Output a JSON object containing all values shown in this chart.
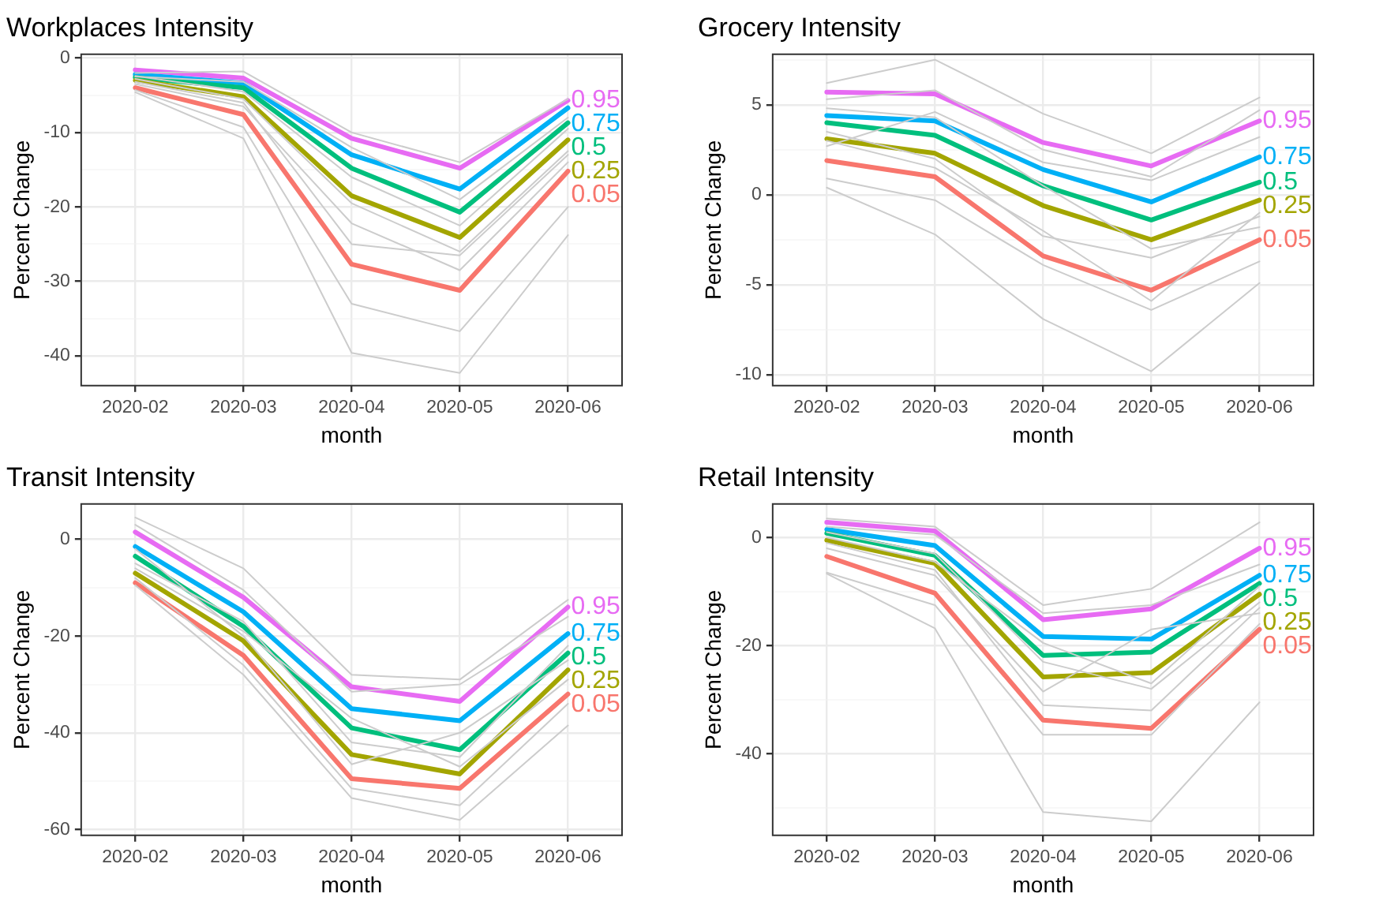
{
  "chart_data": [
    {
      "type": "line",
      "title": "Workplaces Intensity",
      "xlabel": "month",
      "ylabel": "Percent Change",
      "categories": [
        "2020-02",
        "2020-03",
        "2020-04",
        "2020-05",
        "2020-06"
      ],
      "ylim": [
        -44,
        0.5
      ],
      "yticks": [
        {
          "value": -40,
          "label": "-40"
        },
        {
          "value": -35,
          "label": null
        },
        {
          "value": -30,
          "label": "-30"
        },
        {
          "value": -25,
          "label": null
        },
        {
          "value": -20,
          "label": "-20"
        },
        {
          "value": -15,
          "label": null
        },
        {
          "value": -10,
          "label": "-10"
        },
        {
          "value": -5,
          "label": null
        },
        0
      ],
      "grid": true,
      "legend": false,
      "series": [
        {
          "color": "#cccccc",
          "values": [
            -4.6,
            -10.8,
            -39.6,
            -42.3,
            -23.8
          ]
        },
        {
          "color": "#cccccc",
          "values": [
            -4.3,
            -9.3,
            -33,
            -36.7,
            -20
          ]
        },
        {
          "color": "#cccccc",
          "values": [
            -3.5,
            -6.5,
            -22.2,
            -28.5,
            -14
          ]
        },
        {
          "color": "#cccccc",
          "values": [
            -3.2,
            -6,
            -25,
            -26.5,
            -13
          ]
        },
        {
          "color": "#cccccc",
          "values": [
            -2,
            -1.8,
            -10,
            -14,
            -5.5
          ]
        },
        {
          "color": "#cccccc",
          "values": [
            -2.4,
            -4.5,
            -16,
            -22.5,
            -9.5
          ]
        },
        {
          "color": "#cccccc",
          "values": [
            -2.8,
            -5.5,
            -19.5,
            -26,
            -12.5
          ]
        },
        {
          "color": "#cccccc",
          "values": [
            -2.5,
            -3.2,
            -12,
            -19,
            -8
          ]
        },
        {
          "name": "0.05",
          "color": "#f8766d",
          "values": [
            -4,
            -7.6,
            -27.7,
            -31.2,
            -15.2
          ]
        },
        {
          "name": "0.25",
          "color": "#a3a500",
          "values": [
            -3,
            -5.2,
            -18.5,
            -24.1,
            -11
          ]
        },
        {
          "name": "0.5",
          "color": "#00bf7d",
          "values": [
            -2.6,
            -4,
            -14.8,
            -20.7,
            -8.7
          ]
        },
        {
          "name": "0.75",
          "color": "#00b0f6",
          "values": [
            -2.2,
            -3.4,
            -13,
            -17.6,
            -6.7
          ]
        },
        {
          "name": "0.95",
          "color": "#e76bf3",
          "values": [
            -1.6,
            -2.7,
            -10.8,
            -14.8,
            -5.7
          ]
        }
      ]
    },
    {
      "type": "line",
      "title": "Grocery Intensity",
      "xlabel": "month",
      "ylabel": "Percent Change",
      "categories": [
        "2020-02",
        "2020-03",
        "2020-04",
        "2020-05",
        "2020-06"
      ],
      "ylim": [
        -10.6,
        7.8
      ],
      "yticks": [
        -10,
        {
          "value": -7.5,
          "label": null
        },
        -5,
        {
          "value": -2.5,
          "label": null
        },
        0,
        {
          "value": 2.5,
          "label": null
        },
        5,
        {
          "value": 7.5,
          "label": null
        }
      ],
      "grid": true,
      "legend": false,
      "series": [
        {
          "color": "#cccccc",
          "values": [
            0.4,
            -2.2,
            -6.9,
            -9.8,
            -4.9
          ]
        },
        {
          "color": "#cccccc",
          "values": [
            6.2,
            7.5,
            4.5,
            2.3,
            5.4
          ]
        },
        {
          "color": "#cccccc",
          "values": [
            0.9,
            -0.3,
            -3.9,
            -6.4,
            -3.7
          ]
        },
        {
          "color": "#cccccc",
          "values": [
            5.3,
            5.8,
            2.5,
            1,
            4.7
          ]
        },
        {
          "color": "#cccccc",
          "values": [
            3.5,
            2,
            -2.3,
            -3.5,
            -1.2
          ]
        },
        {
          "color": "#cccccc",
          "values": [
            2.7,
            4.6,
            1.8,
            0.8,
            3.2
          ]
        },
        {
          "color": "#cccccc",
          "values": [
            4.8,
            4.3,
            0.5,
            -3,
            -1.8
          ]
        },
        {
          "color": "#cccccc",
          "values": [
            3,
            1.5,
            -2,
            -5.9,
            -1
          ]
        },
        {
          "name": "0.05",
          "color": "#f8766d",
          "values": [
            1.9,
            1,
            -3.4,
            -5.3,
            -2.5
          ]
        },
        {
          "name": "0.25",
          "color": "#a3a500",
          "values": [
            3.1,
            2.3,
            -0.6,
            -2.5,
            -0.3
          ]
        },
        {
          "name": "0.5",
          "color": "#00bf7d",
          "values": [
            4,
            3.3,
            0.5,
            -1.4,
            0.7
          ]
        },
        {
          "name": "0.75",
          "color": "#00b0f6",
          "values": [
            4.4,
            4.1,
            1.4,
            -0.4,
            2.1
          ]
        },
        {
          "name": "0.95",
          "color": "#e76bf3",
          "values": [
            5.7,
            5.6,
            2.9,
            1.6,
            4.1
          ]
        }
      ]
    },
    {
      "type": "line",
      "title": "Transit Intensity",
      "xlabel": "month",
      "ylabel": "Percent Change",
      "categories": [
        "2020-02",
        "2020-03",
        "2020-04",
        "2020-05",
        "2020-06"
      ],
      "ylim": [
        -61.2,
        7.3
      ],
      "yticks": [
        -60,
        {
          "value": -50,
          "label": null
        },
        -40,
        {
          "value": -30,
          "label": null
        },
        -20,
        {
          "value": -10,
          "label": null
        },
        0
      ],
      "grid": true,
      "legend": false,
      "series": [
        {
          "color": "#cccccc",
          "values": [
            4.5,
            -6,
            -28,
            -29,
            -12.5
          ]
        },
        {
          "color": "#cccccc",
          "values": [
            -9.5,
            -28,
            -53.5,
            -58,
            -38.5
          ]
        },
        {
          "color": "#cccccc",
          "values": [
            -8,
            -26,
            -51.5,
            -55,
            -34
          ]
        },
        {
          "color": "#cccccc",
          "values": [
            3,
            -10.5,
            -31.5,
            -30,
            -16
          ]
        },
        {
          "color": "#cccccc",
          "values": [
            -5,
            -17,
            -42,
            -45,
            -22
          ]
        },
        {
          "color": "#cccccc",
          "values": [
            -2,
            -20,
            -46.5,
            -40,
            -25
          ]
        },
        {
          "color": "#cccccc",
          "values": [
            -6,
            -19,
            -37,
            -47,
            -29
          ]
        },
        {
          "name": "0.05",
          "color": "#f8766d",
          "values": [
            -9,
            -24,
            -49.5,
            -51.5,
            -32
          ]
        },
        {
          "name": "0.25",
          "color": "#a3a500",
          "values": [
            -7,
            -21,
            -44.5,
            -48.5,
            -27
          ]
        },
        {
          "name": "0.5",
          "color": "#00bf7d",
          "values": [
            -3.5,
            -18,
            -39,
            -43.5,
            -23.5
          ]
        },
        {
          "name": "0.75",
          "color": "#00b0f6",
          "values": [
            -1.5,
            -15,
            -35,
            -37.5,
            -19.5
          ]
        },
        {
          "name": "0.95",
          "color": "#e76bf3",
          "values": [
            1.5,
            -12,
            -30.5,
            -33.5,
            -14
          ]
        }
      ]
    },
    {
      "type": "line",
      "title": "Retail Intensity",
      "xlabel": "month",
      "ylabel": "Percent Change",
      "categories": [
        "2020-02",
        "2020-03",
        "2020-04",
        "2020-05",
        "2020-06"
      ],
      "ylim": [
        -55.1,
        6.2
      ],
      "yticks": [
        {
          "value": -50,
          "label": null
        },
        -40,
        {
          "value": -30,
          "label": null
        },
        -20,
        {
          "value": -10,
          "label": null
        },
        0
      ],
      "grid": true,
      "legend": false,
      "series": [
        {
          "color": "#cccccc",
          "values": [
            -6.7,
            -16.8,
            -50.8,
            -52.5,
            -30.5
          ]
        },
        {
          "color": "#cccccc",
          "values": [
            -6.5,
            -12.5,
            -36.5,
            -36.5,
            -16
          ]
        },
        {
          "color": "#cccccc",
          "values": [
            3.5,
            2,
            -12.5,
            -9.5,
            2.8
          ]
        },
        {
          "color": "#cccccc",
          "values": [
            2,
            0.5,
            -14,
            -12.5,
            -5
          ]
        },
        {
          "color": "#cccccc",
          "values": [
            -2,
            -7,
            -28.5,
            -17,
            -14
          ]
        },
        {
          "color": "#cccccc",
          "values": [
            -1,
            -6,
            -31,
            -32,
            -13
          ]
        },
        {
          "color": "#cccccc",
          "values": [
            1,
            -3,
            -23,
            -28,
            -12
          ]
        },
        {
          "color": "#cccccc",
          "values": [
            0,
            -4.5,
            -19.5,
            -27,
            -9
          ]
        },
        {
          "name": "0.05",
          "color": "#f8766d",
          "values": [
            -3.5,
            -10.3,
            -33.8,
            -35.3,
            -17
          ]
        },
        {
          "name": "0.25",
          "color": "#a3a500",
          "values": [
            -0.5,
            -4.8,
            -25.8,
            -25,
            -10.5
          ]
        },
        {
          "name": "0.5",
          "color": "#00bf7d",
          "values": [
            0.8,
            -3.3,
            -21.8,
            -21.2,
            -8.5
          ]
        },
        {
          "name": "0.75",
          "color": "#00b0f6",
          "values": [
            1.5,
            -1.5,
            -18.3,
            -18.8,
            -7
          ]
        },
        {
          "name": "0.95",
          "color": "#e76bf3",
          "values": [
            2.8,
            1.2,
            -15.2,
            -13.2,
            -2
          ]
        }
      ]
    }
  ]
}
